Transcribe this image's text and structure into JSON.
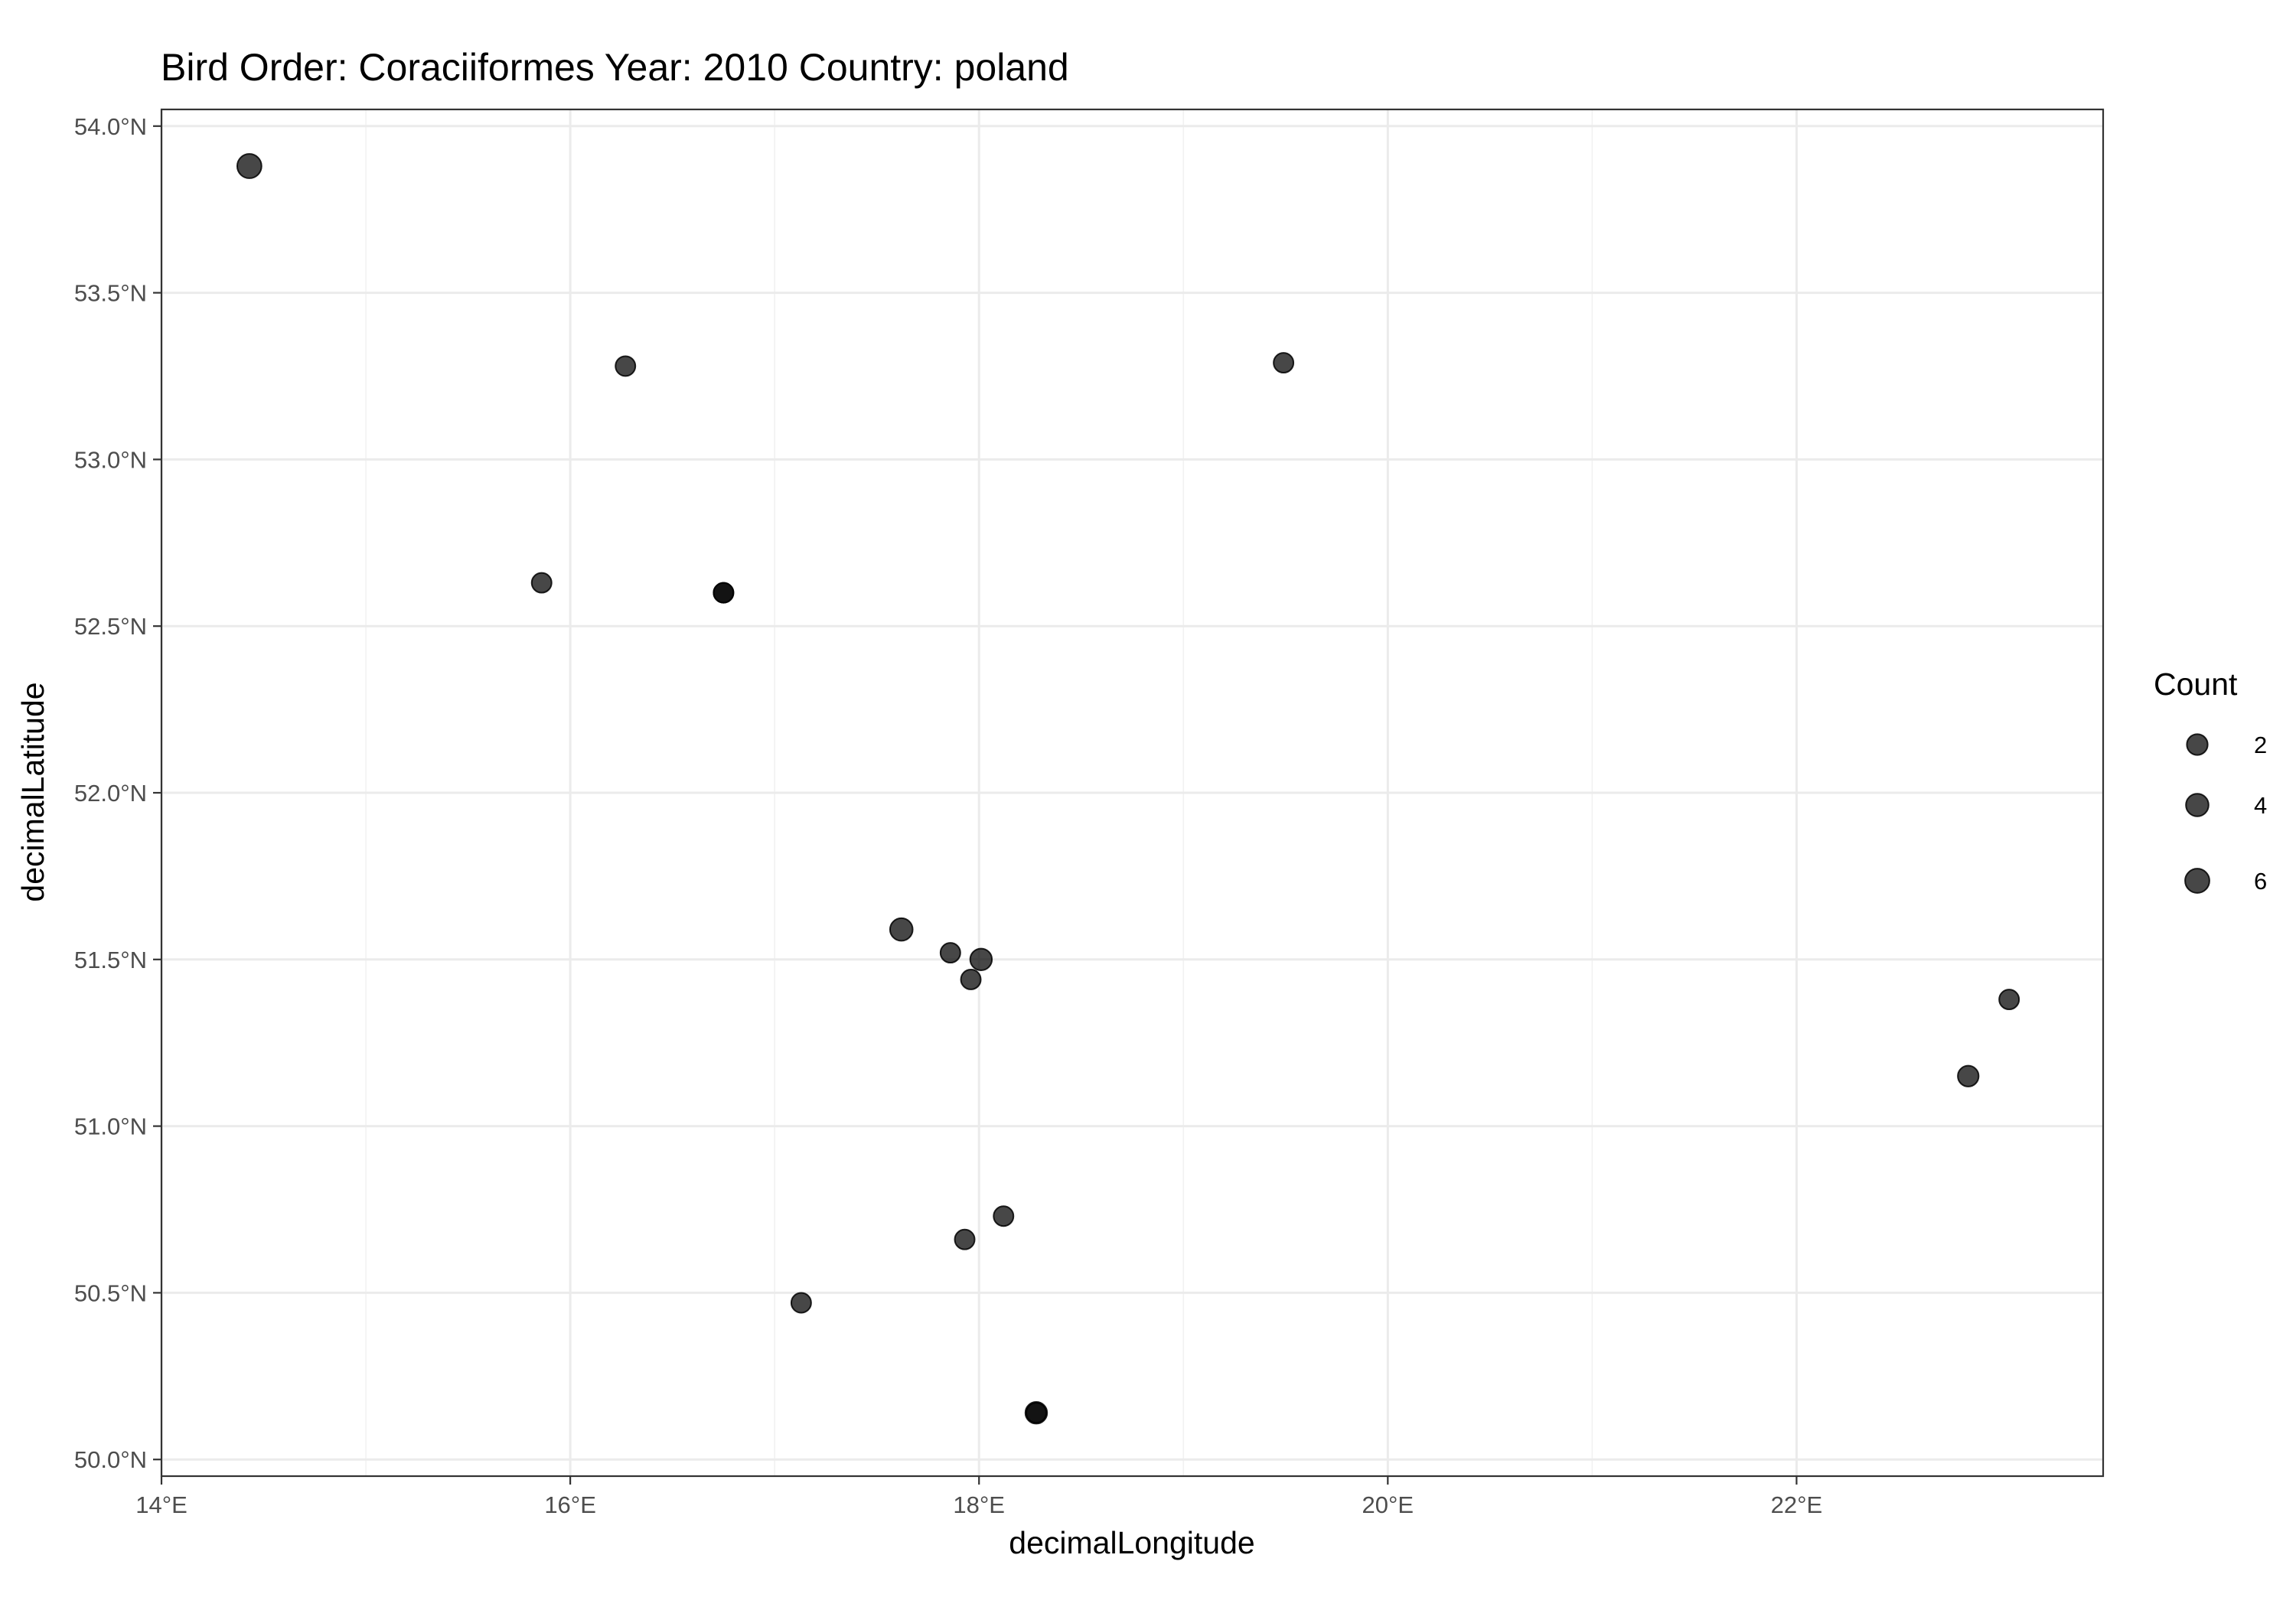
{
  "chart_data": {
    "type": "scatter",
    "title": "Bird Order: Coraciiformes Year: 2010 Country: poland",
    "xlabel": "decimalLongitude",
    "ylabel": "decimalLatitude",
    "xlim": [
      14,
      23.5
    ],
    "ylim": [
      49.95,
      54.05
    ],
    "x_ticks": [
      14,
      16,
      18,
      20,
      22
    ],
    "x_tick_labels": [
      "14°E",
      "16°E",
      "18°E",
      "20°E",
      "22°E"
    ],
    "y_ticks": [
      50.0,
      50.5,
      51.0,
      51.5,
      52.0,
      52.5,
      53.0,
      53.5,
      54.0
    ],
    "y_tick_labels": [
      "50.0°N",
      "50.5°N",
      "51.0°N",
      "51.5°N",
      "52.0°N",
      "52.5°N",
      "53.0°N",
      "53.5°N",
      "54.0°N"
    ],
    "grid": true,
    "legend": {
      "title": "Count",
      "position": "right",
      "entries": [
        {
          "label": "2",
          "value": 2
        },
        {
          "label": "4",
          "value": 4
        },
        {
          "label": "6",
          "value": 6
        }
      ]
    },
    "point_color": "#000000",
    "point_opacity": 0.72,
    "points": [
      {
        "x": 14.43,
        "y": 53.88,
        "count": 6
      },
      {
        "x": 16.27,
        "y": 53.28,
        "count": 1
      },
      {
        "x": 19.49,
        "y": 53.29,
        "count": 1
      },
      {
        "x": 15.86,
        "y": 52.63,
        "count": 1
      },
      {
        "x": 16.75,
        "y": 52.6,
        "count": 1
      },
      {
        "x": 16.75,
        "y": 52.6,
        "count": 1
      },
      {
        "x": 17.62,
        "y": 51.59,
        "count": 4
      },
      {
        "x": 17.86,
        "y": 51.52,
        "count": 1
      },
      {
        "x": 18.01,
        "y": 51.5,
        "count": 3
      },
      {
        "x": 17.96,
        "y": 51.44,
        "count": 1
      },
      {
        "x": 23.04,
        "y": 51.38,
        "count": 1
      },
      {
        "x": 22.84,
        "y": 51.15,
        "count": 2
      },
      {
        "x": 18.12,
        "y": 50.73,
        "count": 1
      },
      {
        "x": 17.93,
        "y": 50.66,
        "count": 1
      },
      {
        "x": 17.13,
        "y": 50.47,
        "count": 1
      },
      {
        "x": 18.28,
        "y": 50.14,
        "count": 3
      },
      {
        "x": 18.28,
        "y": 50.14,
        "count": 1
      }
    ]
  }
}
